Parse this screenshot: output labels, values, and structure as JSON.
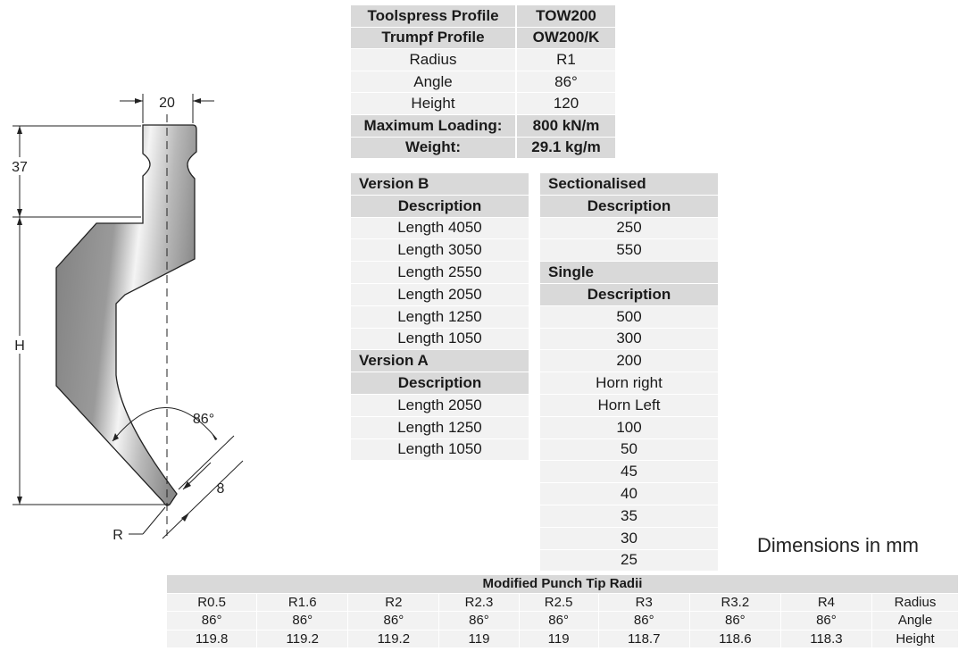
{
  "spec_rows": [
    {
      "label": "Toolspress Profile",
      "value": "TOW200",
      "bold": true
    },
    {
      "label": "Trumpf Profile",
      "value": "OW200/K",
      "bold": true
    },
    {
      "label": "Radius",
      "value": "R1",
      "bold": false
    },
    {
      "label": "Angle",
      "value": "86°",
      "bold": false
    },
    {
      "label": "Height",
      "value": "120",
      "bold": false
    },
    {
      "label": "Maximum Loading:",
      "value": "800 kN/m",
      "bold": true
    },
    {
      "label": "Weight:",
      "value": "29.1 kg/m",
      "bold": true
    }
  ],
  "version_b": {
    "title": "Version B",
    "header": "Description",
    "items": [
      "Length 4050",
      "Length 3050",
      "Length 2550",
      "Length 2050",
      "Length 1250",
      "Length 1050"
    ]
  },
  "version_a": {
    "title": "Version A",
    "header": "Description",
    "items": [
      "Length 2050",
      "Length 1250",
      "Length 1050"
    ]
  },
  "sectionalised": {
    "title": "Sectionalised",
    "header": "Description",
    "items": [
      "250",
      "550"
    ]
  },
  "single": {
    "title": "Single",
    "header": "Description",
    "items": [
      "500",
      "300",
      "200",
      "Horn right",
      "Horn Left",
      "100",
      "50",
      "45",
      "40",
      "35",
      "30",
      "25"
    ]
  },
  "dimensions_note": "Dimensions in mm",
  "tip_radii": {
    "title": "Modified Punch Tip Radii",
    "rows": [
      {
        "label": "Radius",
        "values": [
          "R0.5",
          "R1.6",
          "R2",
          "R2.3",
          "R2.5",
          "R3",
          "R3.2",
          "R4"
        ]
      },
      {
        "label": "Angle",
        "values": [
          "86°",
          "86°",
          "86°",
          "86°",
          "86°",
          "86°",
          "86°",
          "86°"
        ]
      },
      {
        "label": "Height",
        "values": [
          "119.8",
          "119.2",
          "119.2",
          "119",
          "119",
          "118.7",
          "118.6",
          "118.3"
        ]
      }
    ]
  },
  "drawing": {
    "width_label": "20",
    "top_height_label": "37",
    "height_label": "H",
    "angle_label": "86°",
    "tip_label": "8",
    "radius_label": "R"
  },
  "colors": {
    "header_bg": "#d9d9d9",
    "row_bg": "#f2f2f2",
    "profile_fill": "#8a8a8a"
  }
}
